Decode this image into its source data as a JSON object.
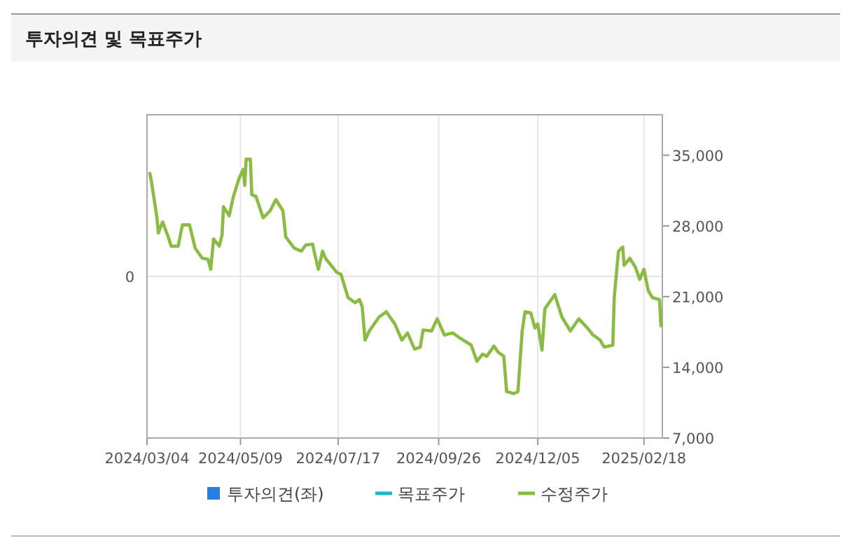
{
  "chart_data": {
    "type": "line",
    "title": "투자의견 및 목표주가",
    "xlim": [
      "2024-03-04",
      "2025-03-03"
    ],
    "xticks": [
      {
        "value": "2024-03-04",
        "label": "2024/03/04"
      },
      {
        "value": "2024-05-09",
        "label": "2024/05/09"
      },
      {
        "value": "2024-07-17",
        "label": "2024/07/17"
      },
      {
        "value": "2024-09-26",
        "label": "2024/09/26"
      },
      {
        "value": "2024-12-05",
        "label": "2024/12/05"
      },
      {
        "value": "2025-02-18",
        "label": "2025/02/18"
      }
    ],
    "annotations": [
      "0"
    ],
    "y2lim": [
      7000,
      39000
    ],
    "y2ticks": [
      {
        "value": 7000,
        "label": "7,000"
      },
      {
        "value": 14000,
        "label": "14,000"
      },
      {
        "value": 21000,
        "label": "21,000"
      },
      {
        "value": 28000,
        "label": "28,000"
      },
      {
        "value": 35000,
        "label": "35,000"
      }
    ],
    "grid": true,
    "legend": "bottom",
    "series": [
      {
        "name": "투자의견(좌)",
        "type": "bar",
        "color": "#2a7de1"
      },
      {
        "name": "목표주가",
        "axis": "y2",
        "color": "#1fb5c9"
      },
      {
        "name": "수정주가",
        "axis": "y2",
        "color": "#8cbb45",
        "x": [
          "2024-03-06",
          "2024-03-07",
          "2024-03-11",
          "2024-03-12",
          "2024-03-15",
          "2024-03-19",
          "2024-03-21",
          "2024-03-26",
          "2024-03-29",
          "2024-04-03",
          "2024-04-07",
          "2024-04-12",
          "2024-04-16",
          "2024-04-18",
          "2024-04-20",
          "2024-04-24",
          "2024-04-26",
          "2024-04-27",
          "2024-05-01",
          "2024-05-04",
          "2024-05-08",
          "2024-05-11",
          "2024-05-12",
          "2024-05-13",
          "2024-05-16",
          "2024-05-17",
          "2024-05-20",
          "2024-05-25",
          "2024-05-30",
          "2024-06-03",
          "2024-06-08",
          "2024-06-10",
          "2024-06-16",
          "2024-06-21",
          "2024-06-24",
          "2024-06-29",
          "2024-06-30",
          "2024-07-03",
          "2024-07-06",
          "2024-07-08",
          "2024-07-16",
          "2024-07-19",
          "2024-07-24",
          "2024-07-29",
          "2024-08-01",
          "2024-08-03",
          "2024-08-05",
          "2024-08-08",
          "2024-08-15",
          "2024-08-20",
          "2024-08-26",
          "2024-08-31",
          "2024-09-04",
          "2024-09-09",
          "2024-09-13",
          "2024-09-15",
          "2024-09-21",
          "2024-09-25",
          "2024-09-30",
          "2024-10-06",
          "2024-10-11",
          "2024-10-19",
          "2024-10-23",
          "2024-10-27",
          "2024-10-30",
          "2024-11-04",
          "2024-11-07",
          "2024-11-11",
          "2024-11-13",
          "2024-11-18",
          "2024-11-21",
          "2024-11-24",
          "2024-11-26",
          "2024-11-30",
          "2024-12-03",
          "2024-12-05",
          "2024-12-08",
          "2024-12-10",
          "2024-12-17",
          "2024-12-22",
          "2024-12-28",
          "2025-01-03",
          "2025-01-09",
          "2025-01-13",
          "2025-01-18",
          "2025-01-21",
          "2025-01-27",
          "2025-01-28",
          "2025-01-31",
          "2025-02-03",
          "2025-02-04",
          "2025-02-08",
          "2025-02-12",
          "2025-02-15",
          "2025-02-18",
          "2025-02-21",
          "2025-02-24",
          "2025-03-01",
          "2025-03-02"
        ],
        "values": [
          33200,
          32500,
          28800,
          27300,
          28400,
          26900,
          26000,
          26000,
          28100,
          28100,
          25800,
          24800,
          24700,
          23700,
          26700,
          26000,
          27100,
          29900,
          29000,
          30900,
          32700,
          33600,
          32000,
          34600,
          34600,
          31100,
          30900,
          28800,
          29500,
          30600,
          29500,
          26900,
          25800,
          25500,
          26100,
          26200,
          25500,
          23700,
          25500,
          24800,
          23400,
          23200,
          20900,
          20400,
          20700,
          20000,
          16700,
          17600,
          19000,
          19500,
          18300,
          16700,
          17400,
          15800,
          16000,
          17700,
          17600,
          18800,
          17200,
          17400,
          16900,
          16200,
          14600,
          15300,
          15100,
          16100,
          15500,
          15100,
          11600,
          11400,
          11600,
          17600,
          19500,
          19400,
          17900,
          18300,
          15700,
          19800,
          21200,
          19000,
          17600,
          18800,
          17900,
          17200,
          16700,
          16000,
          16200,
          20900,
          25500,
          25900,
          24100,
          24800,
          23900,
          22700,
          23700,
          21600,
          20900,
          20700,
          18100
        ]
      }
    ]
  }
}
